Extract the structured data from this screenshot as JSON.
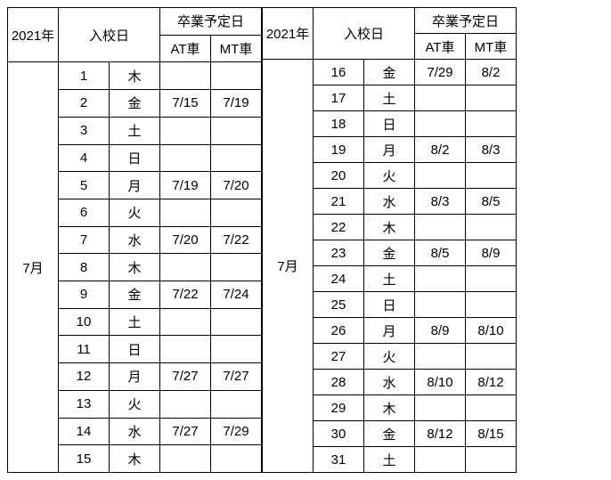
{
  "header": {
    "year": "2021年",
    "entry": "入校日",
    "grad": "卒業予定日",
    "at": "AT車",
    "mt": "MT車"
  },
  "left": {
    "month": "7月",
    "rows": [
      {
        "d": "1",
        "w": "木",
        "at": "",
        "mt": ""
      },
      {
        "d": "2",
        "w": "金",
        "at": "7/15",
        "mt": "7/19"
      },
      {
        "d": "3",
        "w": "土",
        "at": "",
        "mt": ""
      },
      {
        "d": "4",
        "w": "日",
        "at": "",
        "mt": ""
      },
      {
        "d": "5",
        "w": "月",
        "at": "7/19",
        "mt": "7/20"
      },
      {
        "d": "6",
        "w": "火",
        "at": "",
        "mt": ""
      },
      {
        "d": "7",
        "w": "水",
        "at": "7/20",
        "mt": "7/22"
      },
      {
        "d": "8",
        "w": "木",
        "at": "",
        "mt": ""
      },
      {
        "d": "9",
        "w": "金",
        "at": "7/22",
        "mt": "7/24"
      },
      {
        "d": "10",
        "w": "土",
        "at": "",
        "mt": ""
      },
      {
        "d": "11",
        "w": "日",
        "at": "",
        "mt": ""
      },
      {
        "d": "12",
        "w": "月",
        "at": "7/27",
        "mt": "7/27"
      },
      {
        "d": "13",
        "w": "火",
        "at": "",
        "mt": ""
      },
      {
        "d": "14",
        "w": "水",
        "at": "7/27",
        "mt": "7/29"
      },
      {
        "d": "15",
        "w": "木",
        "at": "",
        "mt": ""
      }
    ]
  },
  "right": {
    "month": "7月",
    "rows": [
      {
        "d": "16",
        "w": "金",
        "at": "7/29",
        "mt": "8/2"
      },
      {
        "d": "17",
        "w": "土",
        "at": "",
        "mt": ""
      },
      {
        "d": "18",
        "w": "日",
        "at": "",
        "mt": ""
      },
      {
        "d": "19",
        "w": "月",
        "at": "8/2",
        "mt": "8/3"
      },
      {
        "d": "20",
        "w": "火",
        "at": "",
        "mt": ""
      },
      {
        "d": "21",
        "w": "水",
        "at": "8/3",
        "mt": "8/5"
      },
      {
        "d": "22",
        "w": "木",
        "at": "",
        "mt": ""
      },
      {
        "d": "23",
        "w": "金",
        "at": "8/5",
        "mt": "8/9"
      },
      {
        "d": "24",
        "w": "土",
        "at": "",
        "mt": ""
      },
      {
        "d": "25",
        "w": "日",
        "at": "",
        "mt": ""
      },
      {
        "d": "26",
        "w": "月",
        "at": "8/9",
        "mt": "8/10"
      },
      {
        "d": "27",
        "w": "火",
        "at": "",
        "mt": ""
      },
      {
        "d": "28",
        "w": "水",
        "at": "8/10",
        "mt": "8/12"
      },
      {
        "d": "29",
        "w": "木",
        "at": "",
        "mt": ""
      },
      {
        "d": "30",
        "w": "金",
        "at": "8/12",
        "mt": "8/15"
      },
      {
        "d": "31",
        "w": "土",
        "at": "",
        "mt": ""
      }
    ]
  }
}
